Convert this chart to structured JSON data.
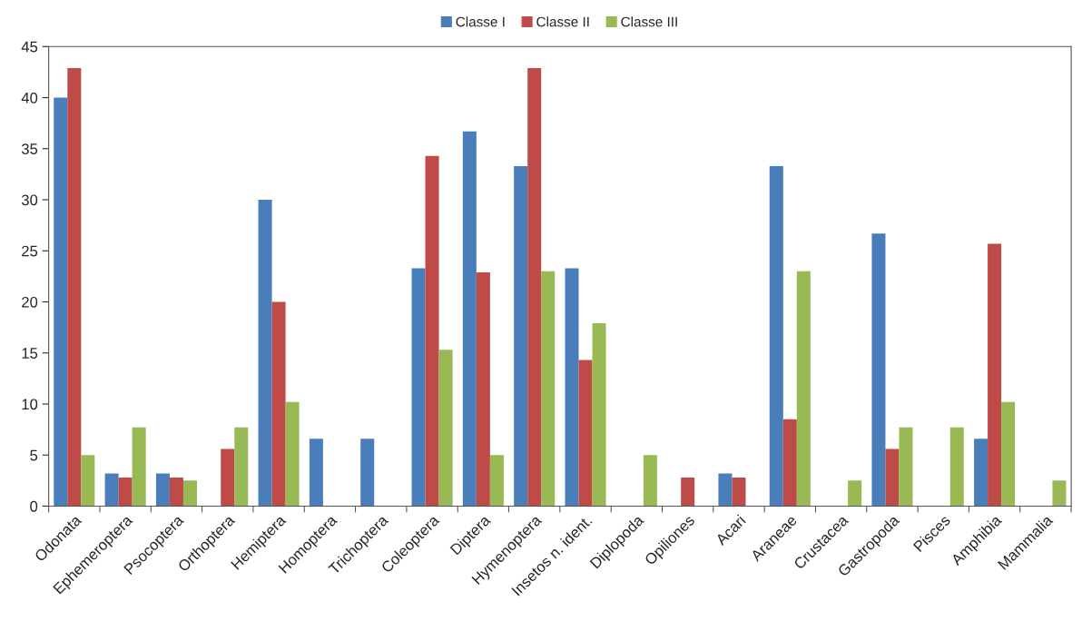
{
  "chart_data": {
    "type": "bar",
    "categories": [
      "Odonata",
      "Ephemeroptera",
      "Psocoptera",
      "Orthoptera",
      "Hemiptera",
      "Homoptera",
      "Trichoptera",
      "Coleoptera",
      "Diptera",
      "Hymenoptera",
      "Insetos n. ident.",
      "Diplopoda",
      "Opiliones",
      "Acari",
      "Araneae",
      "Crustacea",
      "Gastropoda",
      "Pisces",
      "Amphibia",
      "Mammalia"
    ],
    "series": [
      {
        "name": "Classe I",
        "color": "#4a7ebb",
        "values": [
          40,
          3.2,
          3.2,
          0,
          30,
          6.6,
          6.6,
          23.3,
          36.7,
          33.3,
          23.3,
          0,
          0,
          3.2,
          33.3,
          0,
          26.7,
          0,
          6.6,
          0
        ]
      },
      {
        "name": "Classe II",
        "color": "#be4b48",
        "values": [
          42.9,
          2.8,
          2.8,
          5.6,
          20,
          0,
          0,
          34.3,
          22.9,
          42.9,
          14.3,
          0,
          2.8,
          2.8,
          8.5,
          0,
          5.6,
          0,
          25.7,
          0
        ]
      },
      {
        "name": "Classe III",
        "color": "#98b954",
        "values": [
          5,
          7.7,
          2.5,
          7.7,
          10.2,
          0,
          0,
          15.3,
          5,
          23,
          17.9,
          5,
          0,
          0,
          23,
          2.5,
          7.7,
          7.7,
          10.2,
          2.5
        ]
      }
    ],
    "ylim": [
      0,
      45
    ],
    "yticks": [
      0,
      5,
      10,
      15,
      20,
      25,
      30,
      35,
      40,
      45
    ],
    "grid": false,
    "legend": "top"
  }
}
